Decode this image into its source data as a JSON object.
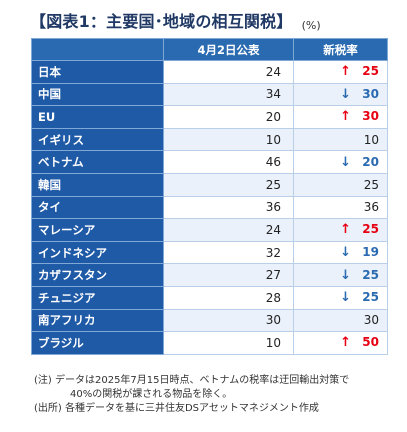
{
  "title": "【図表1：主要国･地域の相互関税】",
  "unit": "(%)",
  "colors": {
    "header_bg": "#2a6ab0",
    "country_bg": "#1f5aa6",
    "up": "#e60012",
    "down": "#2a6ab0"
  },
  "table": {
    "headers": [
      "",
      "4月2日公表",
      "新税率"
    ],
    "rows": [
      {
        "country": "日本",
        "announced": "24",
        "arrow": "↑",
        "direction": "up",
        "new_rate": "25"
      },
      {
        "country": "中国",
        "announced": "34",
        "arrow": "↓",
        "direction": "down",
        "new_rate": "30"
      },
      {
        "country": "EU",
        "announced": "20",
        "arrow": "↑",
        "direction": "up",
        "new_rate": "30"
      },
      {
        "country": "イギリス",
        "announced": "10",
        "arrow": "",
        "direction": "none",
        "new_rate": "10"
      },
      {
        "country": "ベトナム",
        "announced": "46",
        "arrow": "↓",
        "direction": "down",
        "new_rate": "20"
      },
      {
        "country": "韓国",
        "announced": "25",
        "arrow": "",
        "direction": "none",
        "new_rate": "25"
      },
      {
        "country": "タイ",
        "announced": "36",
        "arrow": "",
        "direction": "none",
        "new_rate": "36"
      },
      {
        "country": "マレーシア",
        "announced": "24",
        "arrow": "↑",
        "direction": "up",
        "new_rate": "25"
      },
      {
        "country": "インドネシア",
        "announced": "32",
        "arrow": "↓",
        "direction": "down",
        "new_rate": "19"
      },
      {
        "country": "カザフスタン",
        "announced": "27",
        "arrow": "↓",
        "direction": "down",
        "new_rate": "25"
      },
      {
        "country": "チュニジア",
        "announced": "28",
        "arrow": "↓",
        "direction": "down",
        "new_rate": "25"
      },
      {
        "country": "南アフリカ",
        "announced": "30",
        "arrow": "",
        "direction": "none",
        "new_rate": "30"
      },
      {
        "country": "ブラジル",
        "announced": "10",
        "arrow": "↑",
        "direction": "up",
        "new_rate": "50"
      }
    ]
  },
  "notes": {
    "note_line1": "(注) データは2025年7月15日時点、ベトナムの税率は迂回輸出対策で",
    "note_line2": "40%の関税が課される物品を除く。",
    "source": "(出所) 各種データを基に三井住友DSアセットマネジメント作成"
  }
}
